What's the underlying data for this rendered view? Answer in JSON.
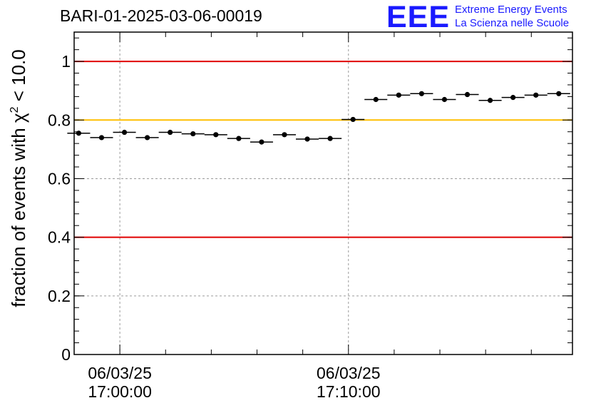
{
  "title": "BARI-01-2025-03-06-00019",
  "logo": {
    "mark": "EEE",
    "line1": "Extreme Energy Events",
    "line2": "La Scienza nelle Scuole",
    "color": "#1a1aff"
  },
  "chart_data": {
    "type": "scatter",
    "title": "BARI-01-2025-03-06-00019",
    "ylabel_parts": {
      "prefix": "fraction of events with ",
      "symbol": "χ",
      "superscript": "2",
      "suffix": " < 10.0"
    },
    "xlabel": "",
    "ylim": [
      0,
      1.1
    ],
    "y_ticks": [
      {
        "value": 0,
        "label": "0"
      },
      {
        "value": 0.2,
        "label": "0.2"
      },
      {
        "value": 0.4,
        "label": "0.4"
      },
      {
        "value": 0.6,
        "label": "0.6"
      },
      {
        "value": 0.8,
        "label": "0.8"
      },
      {
        "value": 1,
        "label": "1"
      }
    ],
    "xlim_minutes": [
      -2.0,
      19.8
    ],
    "x_major_ticks": [
      {
        "minute": 0,
        "date": "06/03/25",
        "time": "17:00:00"
      },
      {
        "minute": 10,
        "date": "06/03/25",
        "time": "17:10:00"
      }
    ],
    "x_minor_tick_minutes": [
      -2,
      2,
      4,
      6,
      8,
      12,
      14,
      16,
      18
    ],
    "bin_width_minutes": 1,
    "grid": true,
    "reference_lines": [
      {
        "y": 1.0,
        "color": "#e00000"
      },
      {
        "y": 0.8,
        "color": "#ffbf00"
      },
      {
        "y": 0.4,
        "color": "#e00000"
      }
    ],
    "points": [
      {
        "x": -1.8,
        "y": 0.755
      },
      {
        "x": -0.8,
        "y": 0.74
      },
      {
        "x": 0.2,
        "y": 0.758
      },
      {
        "x": 1.2,
        "y": 0.74
      },
      {
        "x": 2.2,
        "y": 0.758
      },
      {
        "x": 3.2,
        "y": 0.753
      },
      {
        "x": 4.2,
        "y": 0.75
      },
      {
        "x": 5.2,
        "y": 0.737
      },
      {
        "x": 6.2,
        "y": 0.725
      },
      {
        "x": 7.2,
        "y": 0.75
      },
      {
        "x": 8.2,
        "y": 0.735
      },
      {
        "x": 9.2,
        "y": 0.737
      },
      {
        "x": 10.2,
        "y": 0.802
      },
      {
        "x": 11.2,
        "y": 0.87
      },
      {
        "x": 12.2,
        "y": 0.885
      },
      {
        "x": 13.2,
        "y": 0.89
      },
      {
        "x": 14.2,
        "y": 0.87
      },
      {
        "x": 15.2,
        "y": 0.887
      },
      {
        "x": 16.2,
        "y": 0.867
      },
      {
        "x": 17.2,
        "y": 0.877
      },
      {
        "x": 18.2,
        "y": 0.885
      },
      {
        "x": 19.2,
        "y": 0.89
      }
    ]
  }
}
